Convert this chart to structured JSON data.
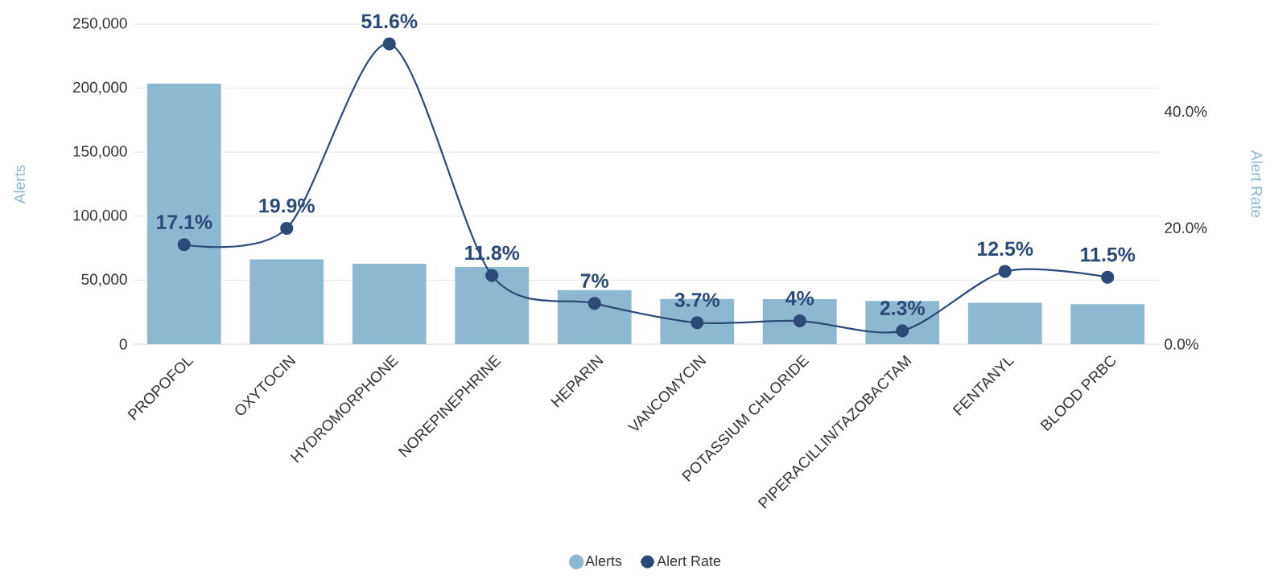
{
  "chart_data": {
    "type": "bar",
    "categories": [
      "PROPOFOL",
      "OXYTOCIN",
      "HYDROMORPHONE",
      "NOREPINEPHRINE",
      "HEPARIN",
      "VANCOMYCIN",
      "POTASSIUM CHLORIDE",
      "PIPERACILLIN/TAZOBACTAM",
      "FENTANYL",
      "BLOOD PRBC"
    ],
    "ylabel": "Alerts",
    "y2label": "Alert Rate",
    "ylim": [
      0,
      250000
    ],
    "yticks": [
      {
        "value": 0,
        "label": "0"
      },
      {
        "value": 50000,
        "label": "50,000"
      },
      {
        "value": 100000,
        "label": "100,000"
      },
      {
        "value": 150000,
        "label": "150,000"
      },
      {
        "value": 200000,
        "label": "200,000"
      },
      {
        "value": 250000,
        "label": "250,000"
      }
    ],
    "y2lim": [
      0,
      55
    ],
    "y2ticks": [
      {
        "value": 0,
        "label": "0.0%"
      },
      {
        "value": 20,
        "label": "20.0%"
      },
      {
        "value": 40,
        "label": "40.0%"
      }
    ],
    "grid": "y",
    "legend": "bottom",
    "series": [
      {
        "name": "Alerts",
        "color": "#8db8d2",
        "values": [
          203500,
          66300,
          62800,
          60300,
          42300,
          35300,
          35200,
          33800,
          32400,
          31300
        ]
      },
      {
        "name": "Alert Rate",
        "type": "line",
        "axis": "y2",
        "color": "#2b4a78",
        "marker": "circle",
        "values": [
          17.1,
          19.9,
          51.6,
          11.8,
          7,
          3.7,
          4,
          2.3,
          12.5,
          11.5
        ],
        "value_labels": [
          "17.1%",
          "19.9%",
          "51.6%",
          "11.8%",
          "7%",
          "3.7%",
          "4%",
          "2.3%",
          "12.5%",
          "11.5%"
        ]
      }
    ]
  }
}
